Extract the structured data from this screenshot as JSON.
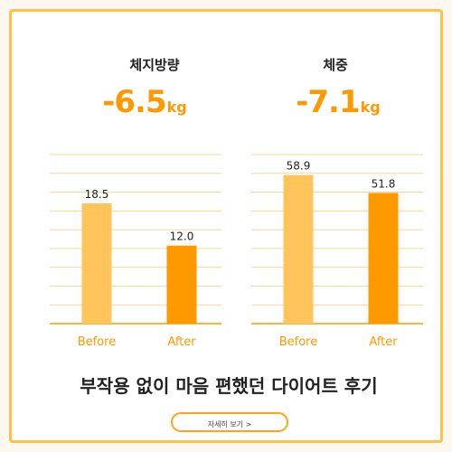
{
  "left_metric": {
    "label": "체지방량",
    "value": "-6.5",
    "unit": "kg"
  },
  "right_metric": {
    "label": "체중",
    "value": "-7.1",
    "unit": "kg"
  },
  "headline": "부작용 없이 마음 편했던 다이어트 후기",
  "more_button": "자세히 보기 >",
  "colors": {
    "accent": "#ff9900",
    "before_bar": "#ffc55a",
    "after_bar": "#ff9900",
    "border": "#ffc247",
    "grid": "#f7d79a"
  },
  "chart_data": [
    {
      "type": "bar",
      "title": "체지방량",
      "categories": [
        "Before",
        "After"
      ],
      "values": [
        18.5,
        12.0
      ],
      "labels": [
        "18.5",
        "12.0"
      ],
      "ylim": [
        0,
        26
      ],
      "grid": true
    },
    {
      "type": "bar",
      "title": "체중",
      "categories": [
        "Before",
        "After"
      ],
      "values": [
        58.9,
        51.8
      ],
      "labels": [
        "58.9",
        "51.8"
      ],
      "ylim": [
        0,
        67
      ],
      "grid": true
    }
  ]
}
